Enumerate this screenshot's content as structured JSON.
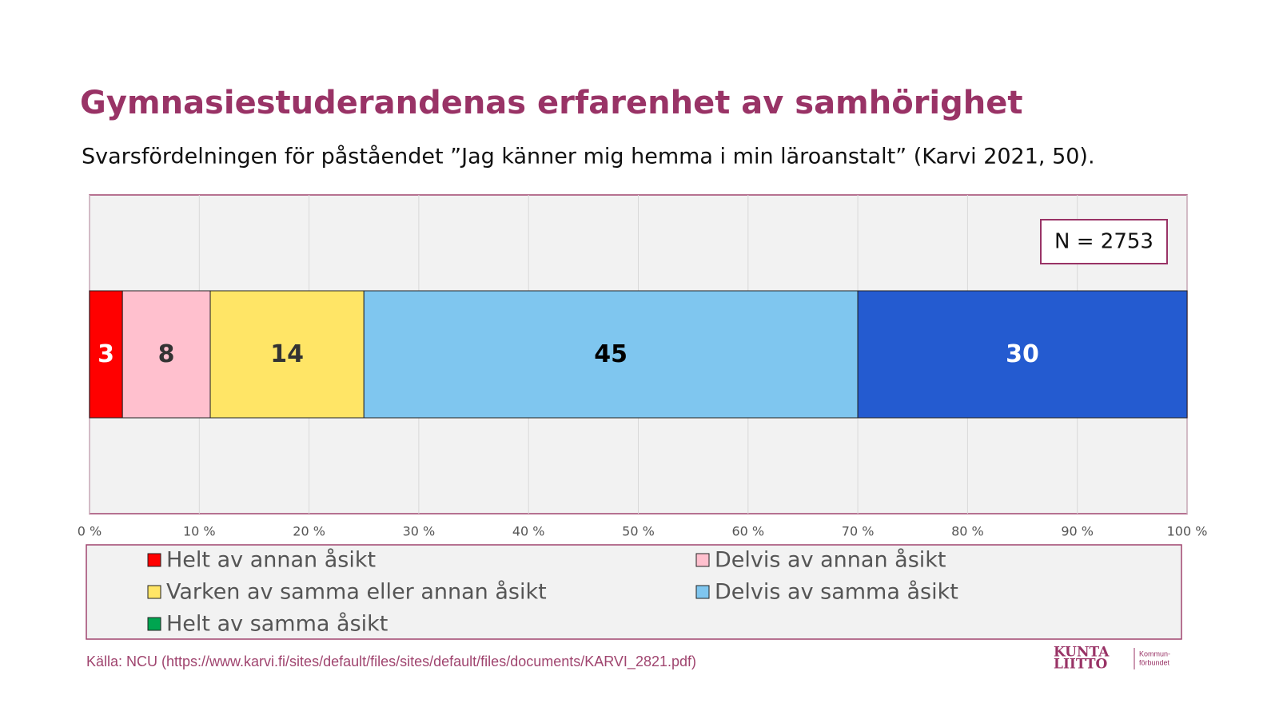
{
  "chart_data": {
    "type": "bar",
    "orientation": "horizontal",
    "stacked": true,
    "title": "Gymnasiestuderandenas erfarenhet av samhörighet",
    "subtitle": "Svarsfördelningen för påståendet ”Jag känner mig hemma i min läroanstalt” (Karvi 2021, 50).",
    "annotation": "N = 2753",
    "categories": [
      null
    ],
    "series": [
      {
        "name": "Helt av annan åsikt",
        "color": "#FF0000",
        "values": [
          3
        ]
      },
      {
        "name": "Delvis av annan åsikt",
        "color": "#FFC0CE",
        "values": [
          8
        ]
      },
      {
        "name": "Varken av samma eller annan åsikt",
        "color": "#FFE566",
        "values": [
          14
        ]
      },
      {
        "name": "Delvis av samma åsikt",
        "color": "#7FC6EF",
        "values": [
          45
        ]
      },
      {
        "name": "Helt av samma åsikt",
        "color": "#245BD0",
        "legend_color": "#00A550",
        "values": [
          30
        ]
      }
    ],
    "xlim": [
      0,
      100
    ],
    "xticks": [
      {
        "value": 0,
        "label": "0 %"
      },
      {
        "value": 10,
        "label": "10 %"
      },
      {
        "value": 20,
        "label": "20 %"
      },
      {
        "value": 30,
        "label": "30 %"
      },
      {
        "value": 40,
        "label": "40 %"
      },
      {
        "value": 50,
        "label": "50 %"
      },
      {
        "value": 60,
        "label": "60 %"
      },
      {
        "value": 70,
        "label": "70 %"
      },
      {
        "value": 80,
        "label": "80 %"
      },
      {
        "value": 90,
        "label": "90 %"
      },
      {
        "value": 100,
        "label": "100 %"
      }
    ],
    "grid": true,
    "source": "Källa: NCU (https://www.karvi.fi/sites/default/files/sites/default/files/documents/KARVI_2821.pdf)"
  },
  "logo": {
    "name_top": "KUNTA",
    "name_bottom": "LIITTO",
    "tagline_top": "Kommun-",
    "tagline_bottom": "förbundet"
  }
}
